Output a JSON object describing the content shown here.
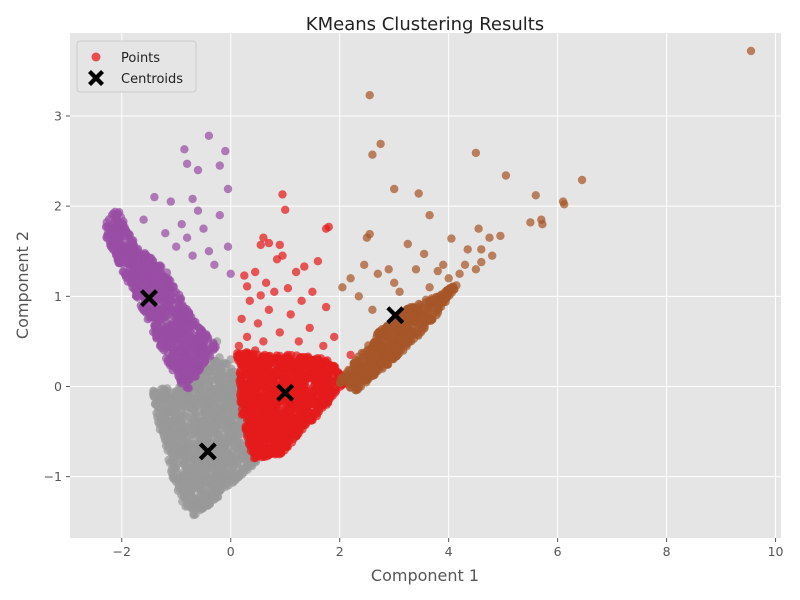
{
  "chart_data": {
    "type": "scatter",
    "title": "KMeans Clustering Results",
    "xlabel": "Component 1",
    "ylabel": "Component 2",
    "xlim": [
      -2.95,
      10.1
    ],
    "ylim": [
      -1.68,
      3.92
    ],
    "xticks": [
      -2,
      0,
      2,
      4,
      6,
      8,
      10
    ],
    "yticks": [
      -1,
      0,
      1,
      2,
      3
    ],
    "xtick_labels": [
      "−2",
      "0",
      "2",
      "4",
      "6",
      "8",
      "10"
    ],
    "ytick_labels": [
      "−1",
      "0",
      "1",
      "2",
      "3"
    ],
    "grid": true,
    "background": "#e5e5e5",
    "legend": {
      "placement": "top-left",
      "entries": [
        {
          "label": "Points",
          "marker": "circle",
          "color": "#e41a1c"
        },
        {
          "label": "Centroids",
          "marker": "x",
          "color": "#000000"
        }
      ]
    },
    "clusters": [
      {
        "id": 0,
        "color": "#984ea3",
        "centroid": [
          -1.5,
          0.98
        ],
        "n_points": 900,
        "envelope": [
          [
            -2.35,
            1.75
          ],
          [
            -2.1,
            2.0
          ],
          [
            -1.7,
            1.55
          ],
          [
            -1.2,
            1.3
          ],
          [
            -0.7,
            0.75
          ],
          [
            -0.25,
            0.45
          ],
          [
            -0.8,
            -0.05
          ],
          [
            -1.1,
            0.2
          ],
          [
            -1.7,
            0.95
          ],
          [
            -2.1,
            1.4
          ]
        ],
        "outliers": [
          [
            -0.85,
            2.63
          ],
          [
            -0.4,
            2.78
          ],
          [
            -0.1,
            2.61
          ],
          [
            -0.8,
            2.47
          ],
          [
            -0.6,
            2.4
          ],
          [
            -0.2,
            2.45
          ],
          [
            -0.05,
            2.19
          ],
          [
            -1.4,
            2.1
          ],
          [
            -1.1,
            2.05
          ],
          [
            -0.7,
            2.08
          ],
          [
            -0.6,
            1.95
          ],
          [
            -0.2,
            1.9
          ],
          [
            -1.6,
            1.85
          ],
          [
            -0.9,
            1.8
          ],
          [
            -0.5,
            1.75
          ],
          [
            -1.2,
            1.7
          ],
          [
            -0.8,
            1.65
          ],
          [
            -0.05,
            1.55
          ],
          [
            -0.4,
            1.5
          ],
          [
            -1.0,
            1.55
          ],
          [
            -0.7,
            1.45
          ],
          [
            -0.3,
            1.35
          ],
          [
            0.0,
            1.25
          ]
        ]
      },
      {
        "id": 1,
        "color": "#999999",
        "centroid": [
          -0.42,
          -0.72
        ],
        "n_points": 1200,
        "envelope": [
          [
            -1.45,
            -0.05
          ],
          [
            -0.75,
            0.05
          ],
          [
            -0.2,
            0.35
          ],
          [
            0.2,
            0.1
          ],
          [
            0.55,
            -0.8
          ],
          [
            -0.65,
            -1.45
          ],
          [
            -0.95,
            -1.25
          ],
          [
            -1.3,
            -0.5
          ]
        ],
        "outliers": [
          [
            -0.25,
            0.5
          ],
          [
            0.0,
            0.3
          ],
          [
            -0.1,
            0.25
          ],
          [
            0.3,
            -0.55
          ],
          [
            0.45,
            -0.7
          ],
          [
            -0.95,
            -1.1
          ]
        ]
      },
      {
        "id": 2,
        "color": "#e41a1c",
        "centroid": [
          1.0,
          -0.07
        ],
        "n_points": 1200,
        "envelope": [
          [
            0.1,
            0.4
          ],
          [
            0.6,
            0.35
          ],
          [
            1.2,
            0.35
          ],
          [
            1.8,
            0.3
          ],
          [
            2.15,
            0.05
          ],
          [
            0.95,
            -0.75
          ],
          [
            0.4,
            -0.8
          ],
          [
            0.2,
            -0.3
          ]
        ],
        "outliers": [
          [
            0.95,
            2.13
          ],
          [
            1.0,
            1.96
          ],
          [
            1.8,
            1.77
          ],
          [
            1.75,
            1.75
          ],
          [
            0.6,
            1.65
          ],
          [
            0.7,
            1.59
          ],
          [
            0.55,
            1.57
          ],
          [
            0.9,
            1.57
          ],
          [
            0.95,
            1.45
          ],
          [
            0.85,
            1.41
          ],
          [
            1.6,
            1.39
          ],
          [
            1.35,
            1.33
          ],
          [
            1.2,
            1.27
          ],
          [
            0.45,
            1.27
          ],
          [
            0.25,
            1.23
          ],
          [
            0.65,
            1.15
          ],
          [
            0.3,
            1.11
          ],
          [
            1.05,
            1.09
          ],
          [
            1.5,
            1.05
          ],
          [
            0.8,
            1.05
          ],
          [
            0.55,
            1.01
          ],
          [
            0.35,
            0.95
          ],
          [
            1.3,
            0.95
          ],
          [
            1.75,
            0.88
          ],
          [
            0.7,
            0.85
          ],
          [
            1.1,
            0.8
          ],
          [
            0.2,
            0.75
          ],
          [
            0.5,
            0.7
          ],
          [
            1.45,
            0.65
          ],
          [
            0.9,
            0.6
          ],
          [
            0.3,
            0.55
          ],
          [
            1.9,
            0.55
          ],
          [
            0.6,
            0.5
          ],
          [
            1.25,
            0.5
          ],
          [
            0.15,
            0.45
          ],
          [
            1.7,
            0.45
          ],
          [
            0.45,
            0.4
          ],
          [
            2.2,
            0.35
          ],
          [
            1.05,
            0.35
          ],
          [
            0.7,
            0.32
          ],
          [
            1.55,
            0.3
          ],
          [
            0.95,
            0.25
          ]
        ]
      },
      {
        "id": 3,
        "color": "#a65628",
        "centroid": [
          3.02,
          0.79
        ],
        "n_points": 500,
        "envelope": [
          [
            1.95,
            0.05
          ],
          [
            2.3,
            0.3
          ],
          [
            2.7,
            0.6
          ],
          [
            3.2,
            0.85
          ],
          [
            3.7,
            1.0
          ],
          [
            4.2,
            1.15
          ],
          [
            3.8,
            0.8
          ],
          [
            3.3,
            0.45
          ],
          [
            2.8,
            0.2
          ],
          [
            2.3,
            -0.05
          ]
        ],
        "outliers": [
          [
            9.55,
            3.72
          ],
          [
            2.55,
            3.23
          ],
          [
            2.75,
            2.69
          ],
          [
            2.6,
            2.57
          ],
          [
            4.5,
            2.59
          ],
          [
            6.45,
            2.29
          ],
          [
            5.05,
            2.34
          ],
          [
            3.0,
            2.19
          ],
          [
            3.45,
            2.14
          ],
          [
            5.6,
            2.12
          ],
          [
            6.1,
            2.05
          ],
          [
            6.12,
            2.02
          ],
          [
            3.65,
            1.9
          ],
          [
            5.5,
            1.82
          ],
          [
            5.72,
            1.8
          ],
          [
            5.7,
            1.85
          ],
          [
            4.55,
            1.75
          ],
          [
            4.75,
            1.65
          ],
          [
            4.95,
            1.67
          ],
          [
            4.05,
            1.64
          ],
          [
            3.25,
            1.58
          ],
          [
            2.5,
            1.65
          ],
          [
            2.55,
            1.69
          ],
          [
            4.6,
            1.52
          ],
          [
            4.35,
            1.52
          ],
          [
            3.55,
            1.47
          ],
          [
            4.8,
            1.45
          ],
          [
            2.05,
            1.1
          ],
          [
            2.35,
            1.0
          ],
          [
            2.7,
            1.25
          ],
          [
            3.0,
            1.15
          ],
          [
            3.9,
            1.35
          ],
          [
            4.2,
            1.25
          ],
          [
            4.5,
            1.3
          ],
          [
            3.4,
            1.3
          ],
          [
            2.2,
            1.2
          ],
          [
            2.9,
            1.3
          ],
          [
            4.0,
            1.2
          ],
          [
            3.65,
            1.1
          ],
          [
            4.3,
            1.35
          ],
          [
            4.6,
            1.38
          ],
          [
            3.8,
            1.28
          ],
          [
            2.45,
            1.35
          ],
          [
            3.1,
            1.05
          ],
          [
            2.6,
            0.85
          ]
        ]
      }
    ]
  }
}
